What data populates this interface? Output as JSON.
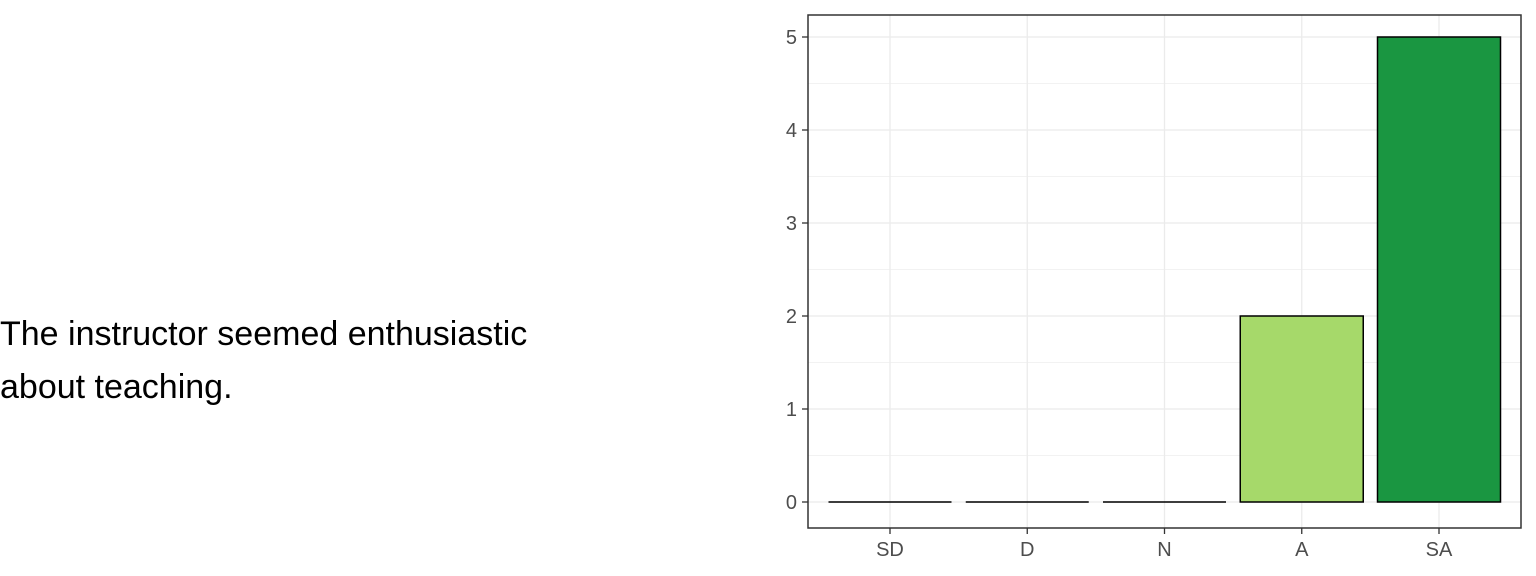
{
  "question": {
    "line1": "The instructor seemed enthusiastic",
    "line2": "about teaching."
  },
  "chart_data": {
    "type": "bar",
    "categories": [
      "SD",
      "D",
      "N",
      "A",
      "SA"
    ],
    "values": [
      0,
      0,
      0,
      2,
      5
    ],
    "colors": [
      "#ffffff",
      "#ffffff",
      "#ffffff",
      "#a6d96a",
      "#1a9641"
    ],
    "title": "",
    "xlabel": "",
    "ylabel": "",
    "ylim": [
      0,
      5
    ],
    "yticks": [
      0,
      1,
      2,
      3,
      4,
      5
    ],
    "grid": true,
    "legend": "none"
  }
}
